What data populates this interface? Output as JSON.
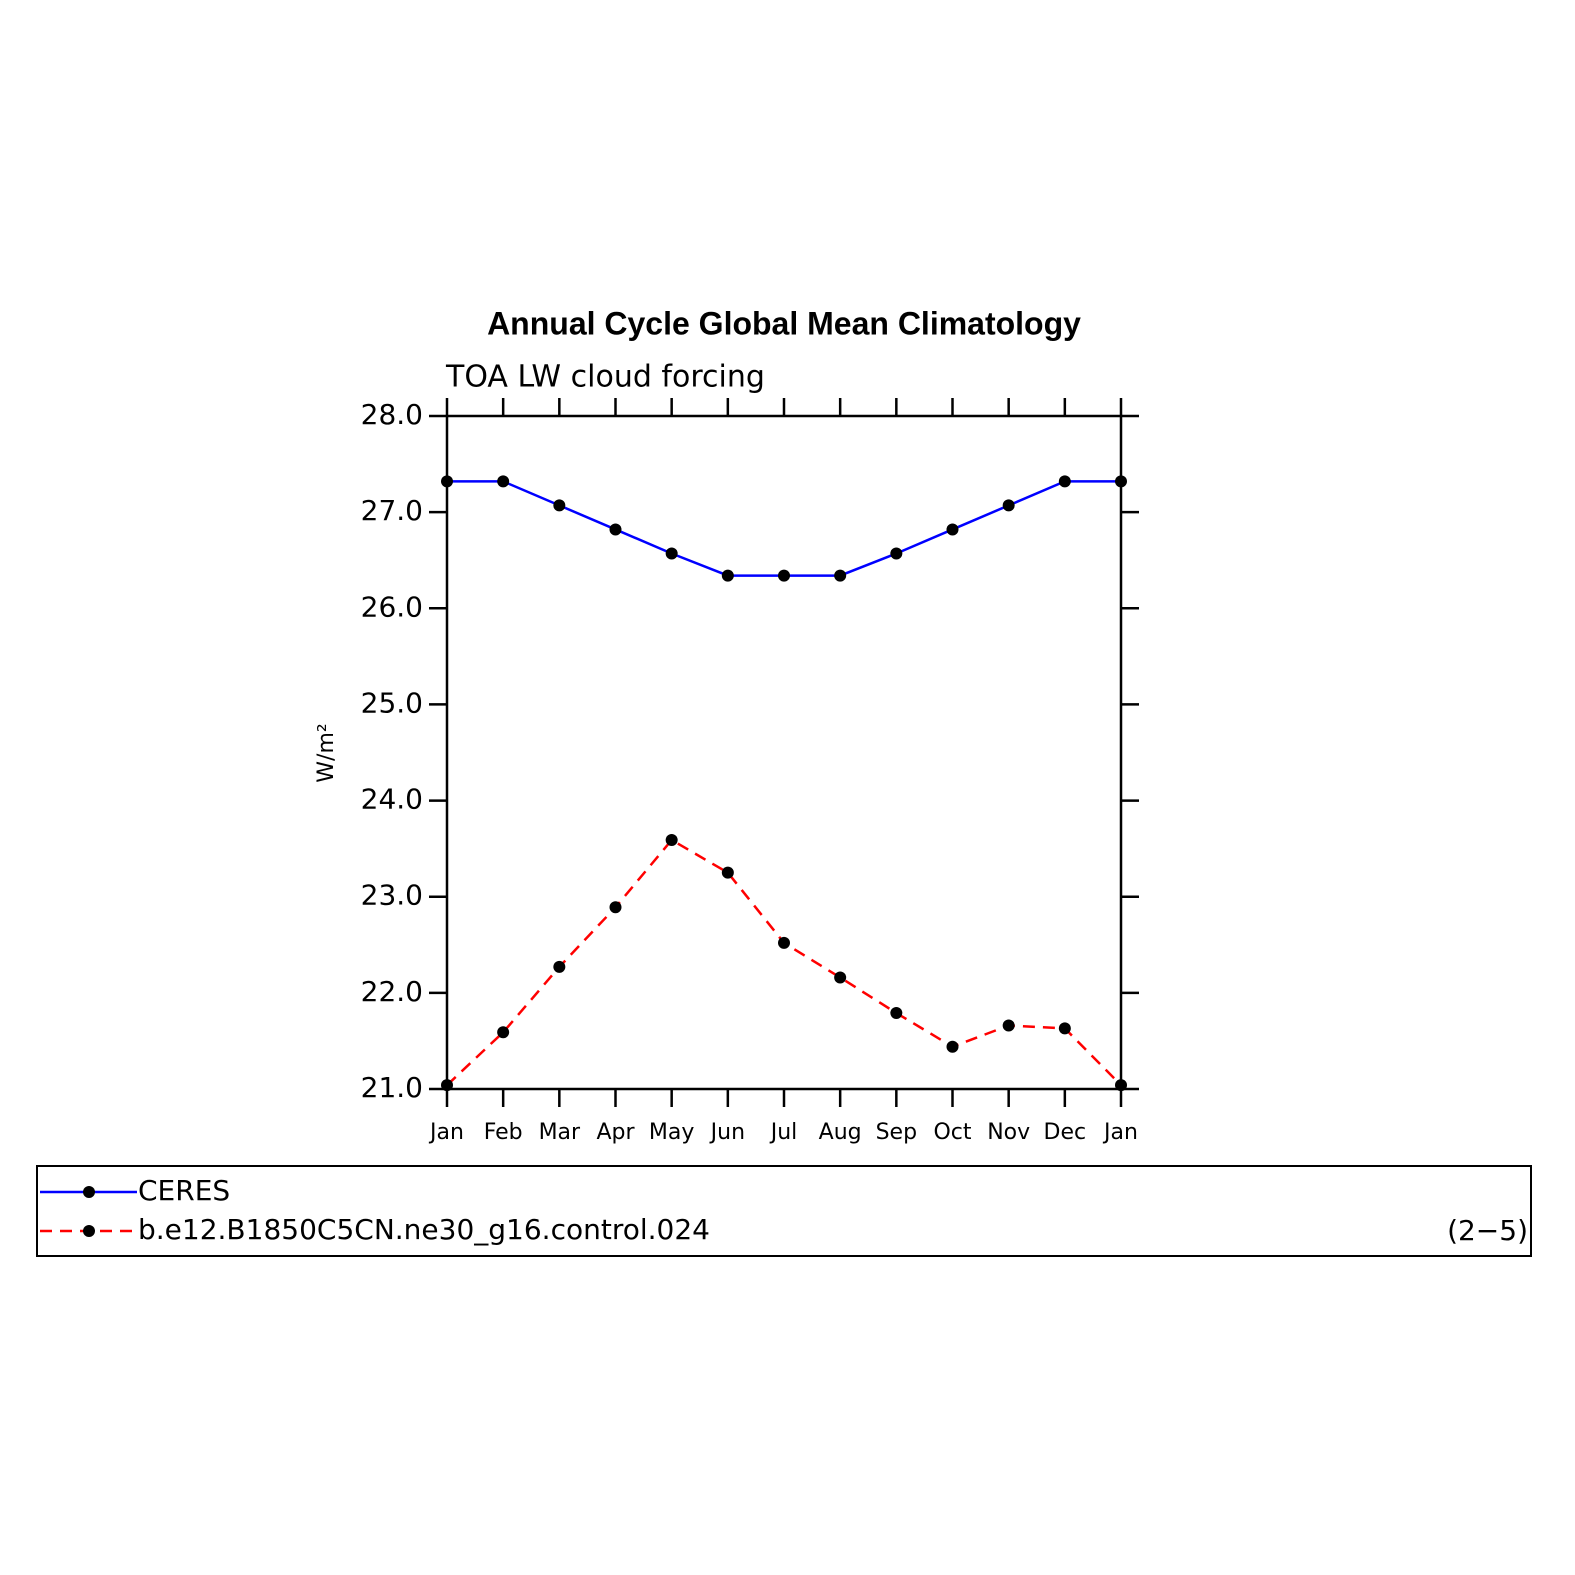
{
  "chart_data": {
    "type": "line",
    "title": "Annual Cycle Global Mean Climatology",
    "subtitle": "TOA LW cloud forcing",
    "y_label": "W/m²",
    "annotation": "(2−5)",
    "categories": [
      "Jan",
      "Feb",
      "Mar",
      "Apr",
      "May",
      "Jun",
      "Jul",
      "Aug",
      "Sep",
      "Oct",
      "Nov",
      "Dec",
      "Jan"
    ],
    "series": [
      {
        "name": "CERES",
        "color": "#0000ff",
        "linestyle": "solid",
        "marker_color": "#000000",
        "values": [
          27.32,
          27.32,
          27.07,
          26.82,
          26.57,
          26.34,
          26.34,
          26.34,
          26.57,
          26.82,
          27.07,
          27.32,
          27.32
        ]
      },
      {
        "name": "b.e12.B1850C5CN.ne30_g16.control.024",
        "color": "#ff0000",
        "linestyle": "dashed",
        "marker_color": "#000000",
        "values": [
          21.04,
          21.59,
          22.27,
          22.89,
          23.59,
          23.25,
          22.52,
          22.16,
          21.79,
          21.44,
          21.66,
          21.63,
          21.04
        ]
      }
    ],
    "ylim": [
      21,
      28
    ],
    "yticks": [
      {
        "value": 21,
        "label": "21.0"
      },
      {
        "value": 22,
        "label": "22.0"
      },
      {
        "value": 23,
        "label": "23.0"
      },
      {
        "value": 24,
        "label": "24.0"
      },
      {
        "value": 25,
        "label": "25.0"
      },
      {
        "value": 26,
        "label": "26.0"
      },
      {
        "value": 27,
        "label": "27.0"
      },
      {
        "value": 28,
        "label": "28.0"
      }
    ],
    "grid": false
  }
}
